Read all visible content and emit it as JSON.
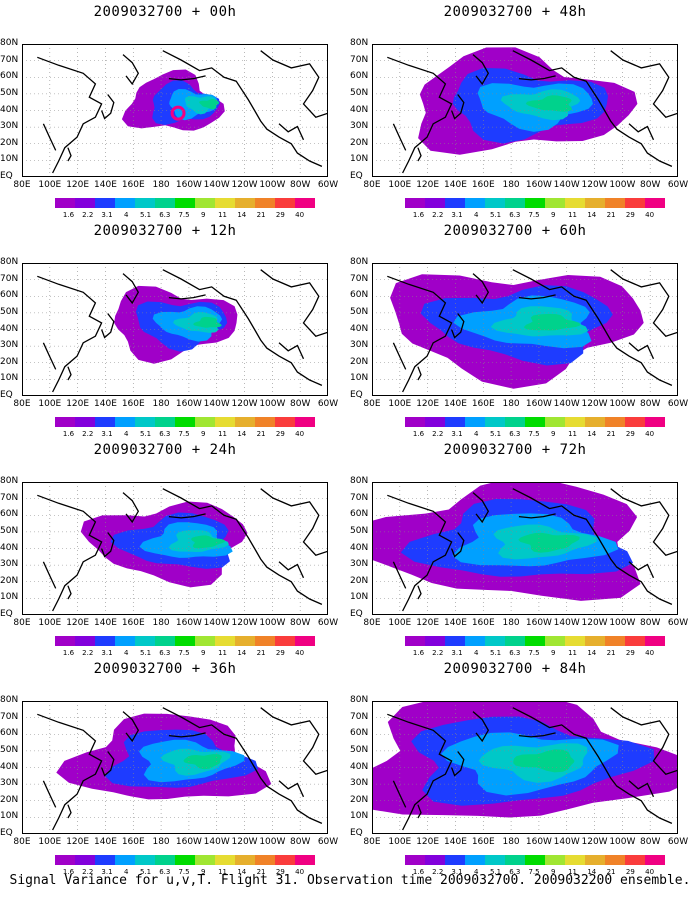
{
  "panels": [
    {
      "title": "2009032700 + 00h",
      "col": 0,
      "row": 0,
      "extent": 1
    },
    {
      "title": "2009032700 + 48h",
      "col": 1,
      "row": 0,
      "extent": 5
    },
    {
      "title": "2009032700 + 12h",
      "col": 0,
      "row": 1,
      "extent": 2
    },
    {
      "title": "2009032700 + 60h",
      "col": 1,
      "row": 1,
      "extent": 6
    },
    {
      "title": "2009032700 + 24h",
      "col": 0,
      "row": 2,
      "extent": 3
    },
    {
      "title": "2009032700 + 72h",
      "col": 1,
      "row": 2,
      "extent": 7
    },
    {
      "title": "2009032700 + 36h",
      "col": 0,
      "row": 3,
      "extent": 4
    },
    {
      "title": "2009032700 + 84h",
      "col": 1,
      "row": 3,
      "extent": 8
    }
  ],
  "lat_labels": [
    "80N",
    "70N",
    "60N",
    "50N",
    "40N",
    "30N",
    "20N",
    "10N",
    "EQ"
  ],
  "lon_labels": [
    "80E",
    "100E",
    "120E",
    "140E",
    "160E",
    "180",
    "160W",
    "140W",
    "120W",
    "100W",
    "80W",
    "60W"
  ],
  "colorbar": {
    "labels": [
      "1.6",
      "2.2",
      "3.1",
      "4",
      "5.1",
      "6.3",
      "7.5",
      "9",
      "11",
      "14",
      "21",
      "29",
      "40"
    ],
    "colors": [
      "#a000c8",
      "#8200dc",
      "#1e3cff",
      "#00a0ff",
      "#00c8c8",
      "#00d28c",
      "#00dc00",
      "#a0e632",
      "#e6dc32",
      "#e6af2d",
      "#f08228",
      "#fa3c3c",
      "#f00082"
    ]
  },
  "caption": "Signal Variance for u,v,T. Flight 31. Observation time 2009032700. 2009032200 ensemble."
}
